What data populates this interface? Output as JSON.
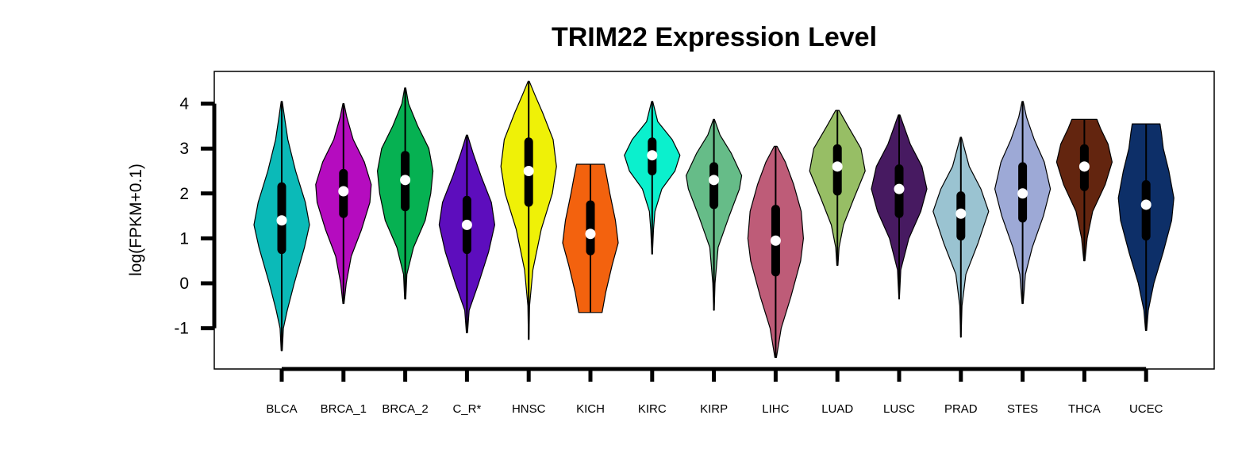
{
  "chart_data": {
    "type": "violin",
    "title": "TRIM22 Expression Level",
    "ylabel": "log(FPKM+0.1)",
    "xlabel": "",
    "ylim": [
      -1.9,
      4.7
    ],
    "yticks": [
      -1,
      0,
      1,
      2,
      3,
      4
    ],
    "grid": false,
    "legend": "none",
    "categories": [
      "BLCA",
      "BRCA_1",
      "BRCA_2",
      "C_R*",
      "HNSC",
      "KICH",
      "KIRC",
      "KIRP",
      "LIHC",
      "LUAD",
      "LUSC",
      "PRAD",
      "STES",
      "THCA",
      "UCEC"
    ],
    "series": [
      {
        "category": "BLCA",
        "color": "#0BBAB8",
        "min": -1.5,
        "max": 4.05,
        "q1": 0.75,
        "median": 1.4,
        "q3": 2.15,
        "shape": [
          [
            -1.5,
            0.02
          ],
          [
            -1.0,
            0.06
          ],
          [
            -0.6,
            0.2
          ],
          [
            0.0,
            0.45
          ],
          [
            0.8,
            0.82
          ],
          [
            1.3,
            1.0
          ],
          [
            1.8,
            0.85
          ],
          [
            2.5,
            0.5
          ],
          [
            3.2,
            0.22
          ],
          [
            3.7,
            0.1
          ],
          [
            4.05,
            0.02
          ]
        ]
      },
      {
        "category": "BRCA_1",
        "color": "#B50CBF",
        "min": -0.45,
        "max": 4.0,
        "q1": 1.55,
        "median": 2.05,
        "q3": 2.45,
        "shape": [
          [
            -0.45,
            0.02
          ],
          [
            0.0,
            0.1
          ],
          [
            0.6,
            0.28
          ],
          [
            1.2,
            0.65
          ],
          [
            1.8,
            0.95
          ],
          [
            2.2,
            1.0
          ],
          [
            2.7,
            0.75
          ],
          [
            3.2,
            0.35
          ],
          [
            3.7,
            0.12
          ],
          [
            4.0,
            0.02
          ]
        ]
      },
      {
        "category": "BRCA_2",
        "color": "#06B152",
        "min": -0.35,
        "max": 4.35,
        "q1": 1.7,
        "median": 2.3,
        "q3": 2.85,
        "shape": [
          [
            -0.35,
            0.02
          ],
          [
            0.2,
            0.06
          ],
          [
            0.8,
            0.3
          ],
          [
            1.4,
            0.72
          ],
          [
            2.0,
            0.92
          ],
          [
            2.5,
            1.0
          ],
          [
            3.0,
            0.85
          ],
          [
            3.5,
            0.45
          ],
          [
            4.0,
            0.12
          ],
          [
            4.35,
            0.02
          ]
        ]
      },
      {
        "category": "C_R*",
        "color": "#5D0DBD",
        "min": -1.1,
        "max": 3.3,
        "q1": 0.75,
        "median": 1.3,
        "q3": 1.85,
        "shape": [
          [
            -1.1,
            0.02
          ],
          [
            -0.6,
            0.08
          ],
          [
            0.0,
            0.42
          ],
          [
            0.7,
            0.78
          ],
          [
            1.3,
            1.0
          ],
          [
            1.8,
            0.88
          ],
          [
            2.4,
            0.5
          ],
          [
            2.9,
            0.22
          ],
          [
            3.3,
            0.02
          ]
        ]
      },
      {
        "category": "HNSC",
        "color": "#EFF107",
        "min": -1.25,
        "max": 4.5,
        "q1": 1.8,
        "median": 2.5,
        "q3": 3.15,
        "shape": [
          [
            -1.25,
            0.01
          ],
          [
            -0.5,
            0.03
          ],
          [
            0.3,
            0.15
          ],
          [
            1.2,
            0.45
          ],
          [
            2.0,
            0.85
          ],
          [
            2.6,
            1.0
          ],
          [
            3.2,
            0.88
          ],
          [
            3.8,
            0.5
          ],
          [
            4.2,
            0.22
          ],
          [
            4.5,
            0.02
          ]
        ]
      },
      {
        "category": "KICH",
        "color": "#F3620E",
        "min": -0.65,
        "max": 2.65,
        "q1": 0.72,
        "median": 1.1,
        "q3": 1.75,
        "shape": [
          [
            -0.65,
            0.42
          ],
          [
            -0.2,
            0.55
          ],
          [
            0.4,
            0.78
          ],
          [
            0.9,
            1.0
          ],
          [
            1.4,
            0.9
          ],
          [
            2.0,
            0.7
          ],
          [
            2.4,
            0.58
          ],
          [
            2.65,
            0.5
          ]
        ]
      },
      {
        "category": "KIRC",
        "color": "#0BF0CD",
        "min": 0.65,
        "max": 4.05,
        "q1": 2.5,
        "median": 2.85,
        "q3": 3.15,
        "shape": [
          [
            0.65,
            0.01
          ],
          [
            1.2,
            0.05
          ],
          [
            1.6,
            0.1
          ],
          [
            2.1,
            0.35
          ],
          [
            2.5,
            0.82
          ],
          [
            2.85,
            1.0
          ],
          [
            3.2,
            0.72
          ],
          [
            3.6,
            0.2
          ],
          [
            4.05,
            0.02
          ]
        ]
      },
      {
        "category": "KIRP",
        "color": "#66BC88",
        "min": -0.6,
        "max": 3.65,
        "q1": 1.75,
        "median": 2.3,
        "q3": 2.6,
        "shape": [
          [
            -0.6,
            0.01
          ],
          [
            0.0,
            0.04
          ],
          [
            0.8,
            0.15
          ],
          [
            1.5,
            0.55
          ],
          [
            2.1,
            0.92
          ],
          [
            2.4,
            1.0
          ],
          [
            2.9,
            0.62
          ],
          [
            3.3,
            0.22
          ],
          [
            3.65,
            0.02
          ]
        ]
      },
      {
        "category": "LIHC",
        "color": "#BE5C78",
        "min": -1.65,
        "max": 3.05,
        "q1": 0.25,
        "median": 0.95,
        "q3": 1.65,
        "shape": [
          [
            -1.65,
            0.03
          ],
          [
            -1.0,
            0.2
          ],
          [
            -0.3,
            0.55
          ],
          [
            0.5,
            0.9
          ],
          [
            1.0,
            1.0
          ],
          [
            1.6,
            0.92
          ],
          [
            2.2,
            0.65
          ],
          [
            2.7,
            0.35
          ],
          [
            3.05,
            0.05
          ]
        ]
      },
      {
        "category": "LUAD",
        "color": "#97BE65",
        "min": 0.4,
        "max": 3.85,
        "q1": 2.05,
        "median": 2.6,
        "q3": 3.0,
        "shape": [
          [
            0.4,
            0.02
          ],
          [
            0.8,
            0.06
          ],
          [
            1.3,
            0.22
          ],
          [
            1.9,
            0.6
          ],
          [
            2.5,
            1.0
          ],
          [
            3.0,
            0.85
          ],
          [
            3.5,
            0.38
          ],
          [
            3.85,
            0.06
          ]
        ]
      },
      {
        "category": "LUSC",
        "color": "#471A61",
        "min": -0.35,
        "max": 3.75,
        "q1": 1.55,
        "median": 2.1,
        "q3": 2.55,
        "shape": [
          [
            -0.35,
            0.01
          ],
          [
            0.3,
            0.06
          ],
          [
            1.0,
            0.35
          ],
          [
            1.6,
            0.78
          ],
          [
            2.1,
            1.0
          ],
          [
            2.6,
            0.82
          ],
          [
            3.1,
            0.4
          ],
          [
            3.75,
            0.03
          ]
        ]
      },
      {
        "category": "PRAD",
        "color": "#9AC3D1",
        "min": -1.2,
        "max": 3.25,
        "q1": 1.05,
        "median": 1.55,
        "q3": 1.95,
        "shape": [
          [
            -1.2,
            0.01
          ],
          [
            -0.5,
            0.04
          ],
          [
            0.2,
            0.18
          ],
          [
            0.9,
            0.62
          ],
          [
            1.6,
            1.0
          ],
          [
            2.1,
            0.72
          ],
          [
            2.6,
            0.3
          ],
          [
            3.25,
            0.02
          ]
        ]
      },
      {
        "category": "STES",
        "color": "#9DA9D6",
        "min": -0.45,
        "max": 4.05,
        "q1": 1.45,
        "median": 2.0,
        "q3": 2.6,
        "shape": [
          [
            -0.45,
            0.02
          ],
          [
            0.2,
            0.1
          ],
          [
            0.8,
            0.35
          ],
          [
            1.5,
            0.75
          ],
          [
            2.1,
            1.0
          ],
          [
            2.7,
            0.78
          ],
          [
            3.2,
            0.42
          ],
          [
            3.7,
            0.14
          ],
          [
            4.05,
            0.02
          ]
        ]
      },
      {
        "category": "THCA",
        "color": "#63250F",
        "min": 0.5,
        "max": 3.65,
        "q1": 2.15,
        "median": 2.6,
        "q3": 3.0,
        "shape": [
          [
            0.5,
            0.02
          ],
          [
            1.0,
            0.1
          ],
          [
            1.6,
            0.3
          ],
          [
            2.2,
            0.75
          ],
          [
            2.7,
            1.0
          ],
          [
            3.1,
            0.85
          ],
          [
            3.45,
            0.58
          ],
          [
            3.65,
            0.45
          ]
        ]
      },
      {
        "category": "UCEC",
        "color": "#0D2F68",
        "min": -1.05,
        "max": 3.55,
        "q1": 1.05,
        "median": 1.75,
        "q3": 2.2,
        "shape": [
          [
            -1.05,
            0.02
          ],
          [
            -0.6,
            0.08
          ],
          [
            0.0,
            0.28
          ],
          [
            0.7,
            0.62
          ],
          [
            1.4,
            0.92
          ],
          [
            1.9,
            1.0
          ],
          [
            2.5,
            0.82
          ],
          [
            3.0,
            0.62
          ],
          [
            3.35,
            0.55
          ],
          [
            3.55,
            0.5
          ]
        ]
      }
    ]
  }
}
